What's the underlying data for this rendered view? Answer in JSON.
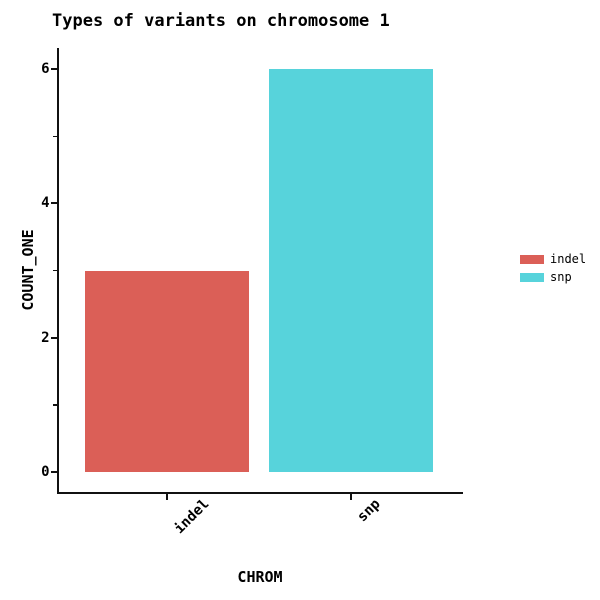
{
  "chart_data": {
    "type": "bar",
    "title": "Types of variants on chromosome 1",
    "xlabel": "CHROM",
    "ylabel": "COUNT_ONE",
    "categories": [
      "indel",
      "snp"
    ],
    "values": [
      3,
      6
    ],
    "bar_colors": [
      "#db5f57",
      "#57d3db"
    ],
    "ylim": [
      0,
      6.3
    ],
    "yticks_major": [
      0,
      2,
      4,
      6
    ],
    "yticks_minor": [
      1,
      3,
      5
    ],
    "grid": false,
    "legend": {
      "position": "right",
      "entries": [
        {
          "label": "indel",
          "color": "#db5f57"
        },
        {
          "label": "snp",
          "color": "#57d3db"
        }
      ]
    }
  }
}
